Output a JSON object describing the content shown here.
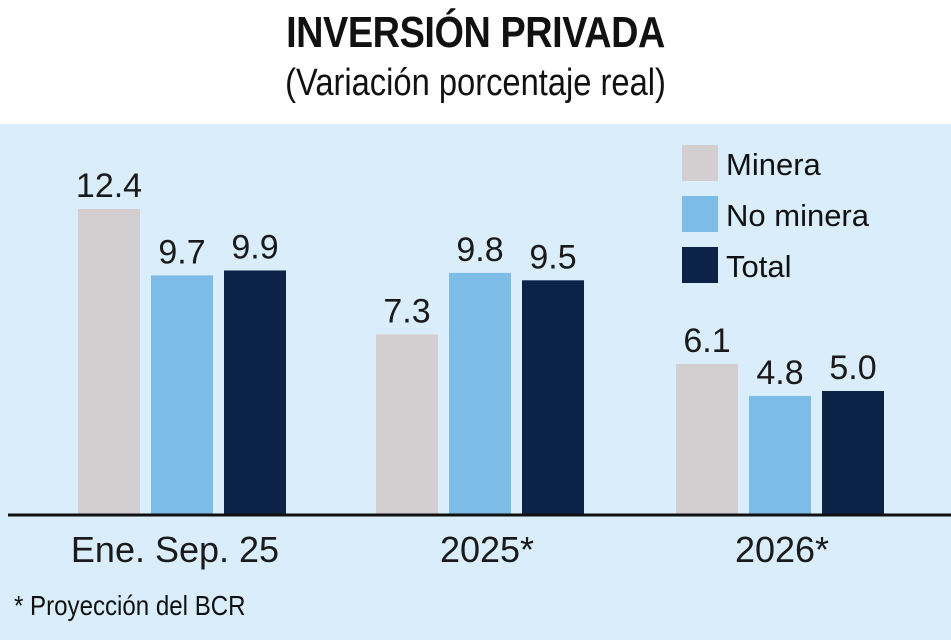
{
  "chart_data": {
    "type": "bar",
    "title": "INVERSIÓN PRIVADA",
    "subtitle": "(Variación porcentaje real)",
    "xlabel": "",
    "ylabel": "",
    "ylim": [
      0,
      13
    ],
    "grid": false,
    "legend_position": "top-right",
    "categories": [
      "Ene. Sep. 25",
      "2025*",
      "2026*"
    ],
    "series": [
      {
        "name": "Minera",
        "color": "#d3cfd0",
        "values": [
          12.4,
          7.3,
          6.1
        ],
        "labels": [
          "12.4",
          "7.3",
          "6.1"
        ]
      },
      {
        "name": "No minera",
        "color": "#7dbce6",
        "values": [
          9.7,
          9.8,
          4.8
        ],
        "labels": [
          "9.7",
          "9.8",
          "4.8"
        ]
      },
      {
        "name": "Total",
        "color": "#0c2347",
        "values": [
          9.9,
          9.5,
          5.0
        ],
        "labels": [
          "9.9",
          "9.5",
          "5.0"
        ]
      }
    ],
    "footnote": "* Proyección del BCR"
  },
  "colors": {
    "panel_background": "#d9eefa",
    "baseline": "#111111"
  }
}
